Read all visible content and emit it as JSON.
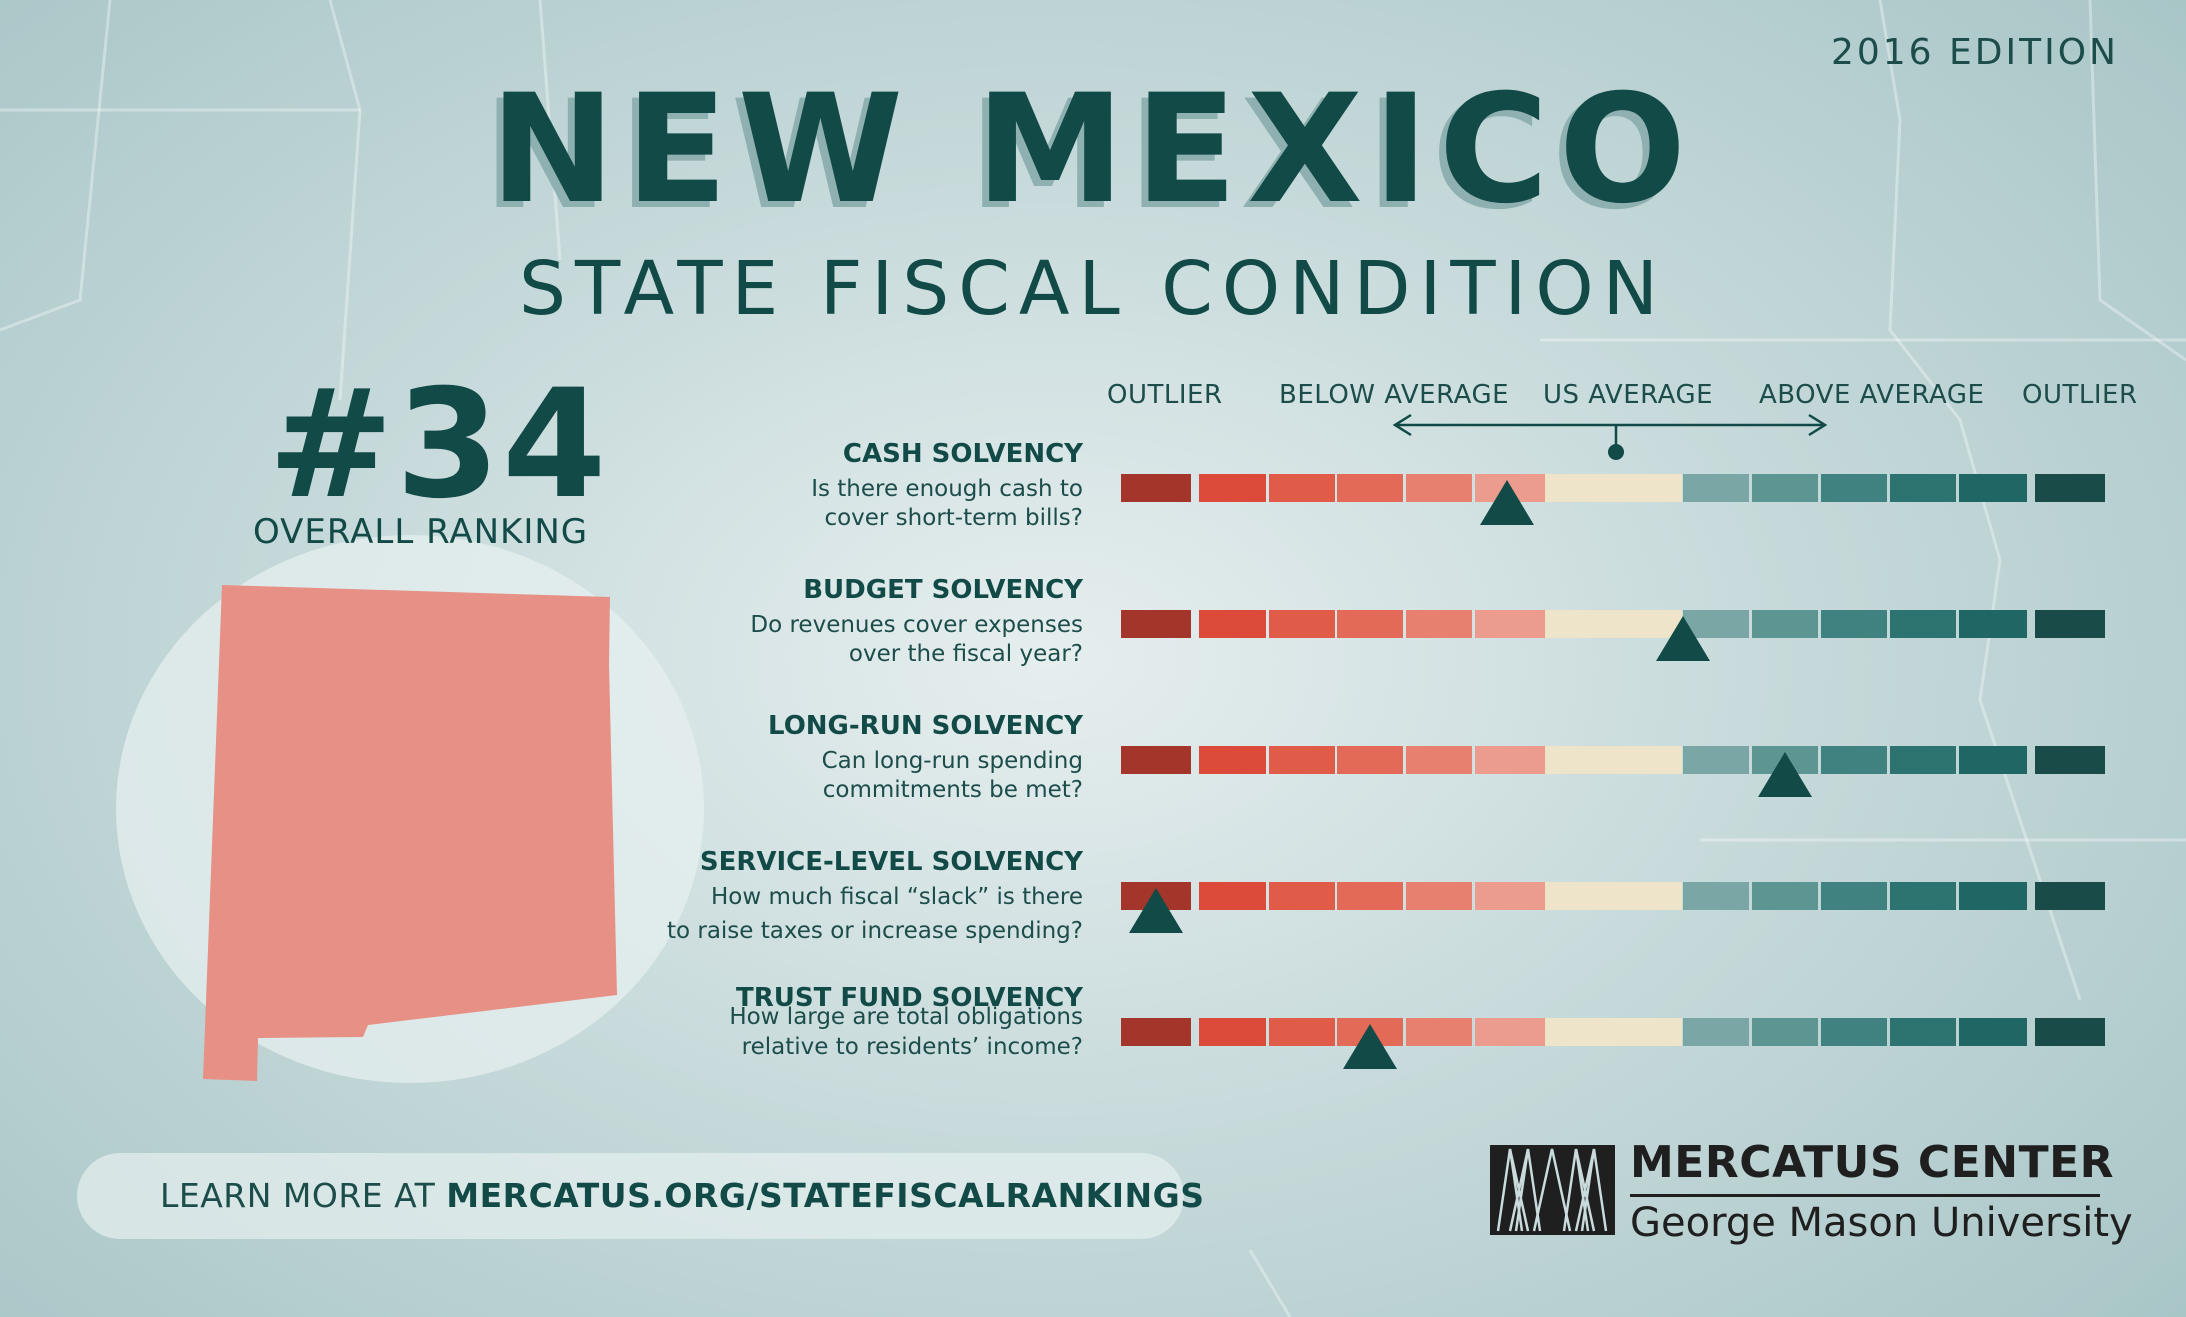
{
  "edition": "2016 EDITION",
  "title": "NEW MEXICO",
  "subtitle": "STATE FISCAL CONDITION",
  "ranking": {
    "number": "#34",
    "label": "OVERALL RANKING"
  },
  "scale": {
    "labels": [
      "OUTLIER",
      "BELOW AVERAGE",
      "US AVERAGE",
      "ABOVE AVERAGE",
      "OUTLIER"
    ],
    "segment_colors": [
      "#a3352b",
      "#dc4a39",
      "#e05b48",
      "#e46a58",
      "#e8806f",
      "#eb9c8e",
      "#ede4c9",
      "#7aa7a5",
      "#5c9592",
      "#3f827f",
      "#2d7471",
      "#1f6664",
      "#194b49"
    ]
  },
  "metrics": [
    {
      "title": "CASH SOLVENCY",
      "question_line1": "Is there enough cash to",
      "question_line2": "cover short-term bills?",
      "marker_segment": 5.45
    },
    {
      "title": "BUDGET SOLVENCY",
      "question_line1": "Do revenues cover expenses",
      "question_line2": "over the fiscal year?",
      "marker_segment": 7.0
    },
    {
      "title": "LONG-RUN SOLVENCY",
      "question_line1": "Can long-run spending",
      "question_line2": "commitments be met?",
      "marker_segment": 8.5
    },
    {
      "title": "SERVICE-LEVEL SOLVENCY",
      "question_line1": "How much fiscal “slack” is there",
      "question_line2": "to raise taxes or increase spending?",
      "marker_segment": 0.5
    },
    {
      "title": "TRUST FUND SOLVENCY",
      "question_line1": "How large are total obligations",
      "question_line2": "relative to residents’ income?",
      "marker_segment": 3.5
    }
  ],
  "footer": {
    "learn_prefix": "LEARN MORE AT ",
    "learn_url": "MERCATUS.ORG/STATEFISCALRANKINGS"
  },
  "logo": {
    "name": "MERCATUS CENTER",
    "sub": "George Mason University"
  },
  "colors": {
    "primary": "#124a47",
    "state_fill": "#e79085"
  }
}
